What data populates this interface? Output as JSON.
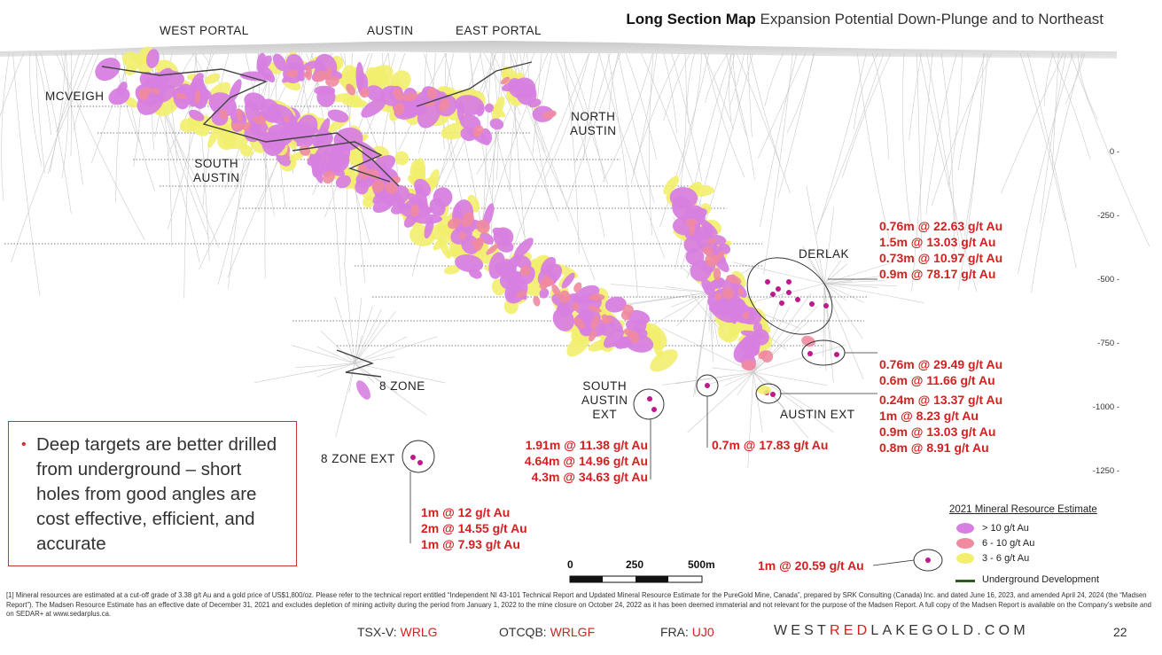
{
  "title": {
    "bold": "Long Section Map",
    "rest": "Expansion Potential Down-Plunge and to Northeast"
  },
  "zones": {
    "west_portal": "WEST PORTAL",
    "austin": "AUSTIN",
    "east_portal": "EAST PORTAL",
    "mcveigh": "MCVEIGH",
    "north_austin_1": "NORTH",
    "north_austin_2": "AUSTIN",
    "south_austin_1": "SOUTH",
    "south_austin_2": "AUSTIN",
    "derlak": "DERLAK",
    "eight_zone": "8 ZONE",
    "eight_zone_ext": "8 ZONE EXT",
    "south_austin_ext_1": "SOUTH",
    "south_austin_ext_2": "AUSTIN",
    "south_austin_ext_3": "EXT",
    "austin_ext": "AUSTIN EXT"
  },
  "depth_ticks": [
    "0 -",
    "-250 -",
    "-500 -",
    "-750 -",
    "-1000 -",
    "-1250 -"
  ],
  "intercepts": {
    "derlak": [
      "0.76m @ 22.63 g/t Au",
      "1.5m @ 13.03 g/t Au",
      "0.73m @ 10.97 g/t Au",
      "0.9m @ 78.17 g/t Au"
    ],
    "mid_right": [
      "0.76m @ 29.49 g/t Au",
      "0.6m @ 11.66 g/t Au"
    ],
    "austin_ext": [
      "0.24m @ 13.37 g/t Au",
      "1m @ 8.23 g/t Au",
      "0.9m @ 13.03 g/t Au",
      "0.8m @ 8.91 g/t Au"
    ],
    "south_austin_ext": [
      "1.91m @ 11.38 g/t Au",
      "4.64m @ 14.96 g/t Au",
      "4.3m @ 34.63 g/t Au"
    ],
    "center": [
      "0.7m @ 17.83 g/t Au"
    ],
    "eight_zone_ext": [
      "1m @ 12 g/t Au",
      "2m @ 14.55 g/t Au",
      "1m @ 7.93 g/t Au"
    ],
    "bottom_right": [
      "1m @ 20.59 g/t Au"
    ]
  },
  "callout": {
    "bullet": "•",
    "text": "Deep targets are better drilled from underground – short holes from good angles are cost effective, efficient, and accurate"
  },
  "legend": {
    "title": "2021 Mineral Resource Estimate",
    "items": [
      {
        "label": "> 10 g/t Au",
        "color": "#d77fe0"
      },
      {
        "label": "6 - 10 g/t Au",
        "color": "#f08aa0"
      },
      {
        "label": "3 - 6 g/t Au",
        "color": "#f2ee6e"
      }
    ],
    "underground": {
      "label": "Underground Development",
      "color": "#2e5a1e"
    }
  },
  "scale": {
    "labels": [
      "0",
      "250",
      "500m"
    ]
  },
  "footnote": "[1] Mineral resources are estimated at a cut-off grade of 3.38 g/t Au and a gold price of US$1,800/oz. Please refer to the technical report entitled “Independent NI 43-101 Technical Report and Updated Mineral Resource Estimate for the PureGold Mine, Canada”, prepared by SRK Consulting (Canada) Inc. and dated June 16, 2023, and amended April 24, 2024 (the “Madsen Report”). The Madsen Resource Estimate has an effective date of December 31, 2021 and excludes depletion of mining activity during the period from January 1, 2022 to the mine closure on October 24, 2022 as it has been deemed immaterial and not relevant for the purpose of the Madsen Report. A full copy of the Madsen Report is available on the Company’s website and on SEDAR+ at www.sedarplus.ca.",
  "footer": {
    "tsx_label": "TSX-V:",
    "tsx_value": "WRLG",
    "otc_label": "OTCQB:",
    "otc_value": "WRLGF",
    "fra_label": "FRA:",
    "fra_value": "UJ0",
    "site_a": "WEST",
    "site_b": "RED",
    "site_c": "LAKEGOLD.COM",
    "page": "22"
  },
  "colors": {
    "high": "#d77fe0",
    "mid": "#f08aa0",
    "low": "#f2ee6e",
    "accent": "#d42020"
  }
}
